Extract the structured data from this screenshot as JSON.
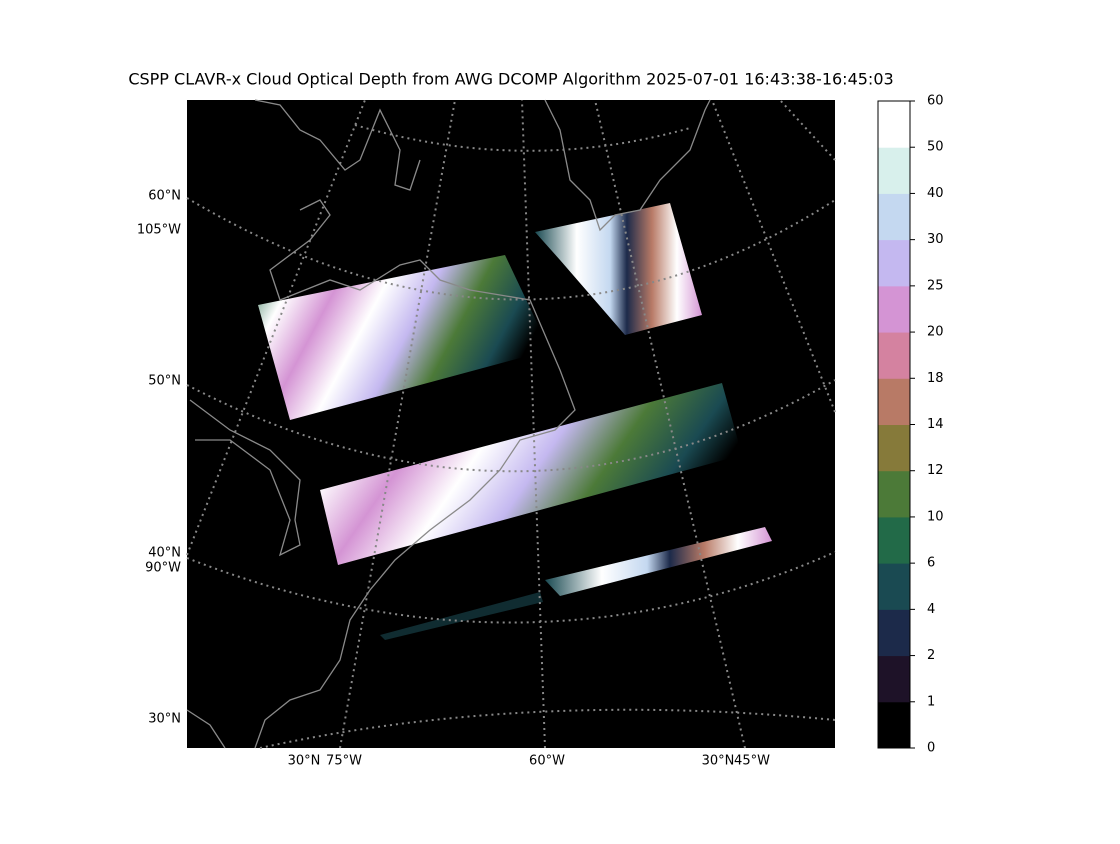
{
  "title": "CSPP CLAVR-x Cloud Optical Depth from AWG DCOMP Algorithm 2025-07-01 16:43:38-16:45:03",
  "map": {
    "left_labels": [
      "60°N",
      "105°W",
      "50°N",
      "40°N",
      "90°W",
      "30°N"
    ],
    "bottom_labels": [
      "30°N",
      "75°W",
      "60°W",
      "30°N",
      "45°W"
    ]
  },
  "colorbar": {
    "ticks": [
      0,
      1,
      2,
      4,
      6,
      10,
      12,
      14,
      18,
      20,
      25,
      30,
      40,
      50,
      60
    ],
    "colors": [
      "#000000",
      "#1e1228",
      "#1c2a4a",
      "#1a4a52",
      "#226a48",
      "#4c7a38",
      "#867a3a",
      "#b87a66",
      "#d482a0",
      "#d494d4",
      "#c4b8f0",
      "#c4d8f0",
      "#d8f0ec",
      "#ffffff"
    ]
  }
}
